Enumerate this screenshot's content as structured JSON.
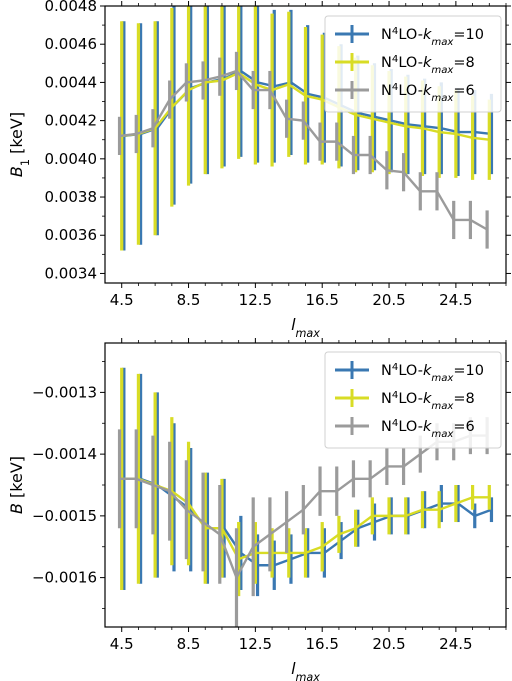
{
  "chart_data": [
    {
      "type": "line",
      "xlabel": "l_max",
      "ylabel": "B_1 [keV]",
      "ylim": [
        0.00335,
        0.0048
      ],
      "xlim": [
        3.5,
        27.5
      ],
      "x_ticks": [
        4.5,
        8.5,
        12.5,
        16.5,
        20.5,
        24.5
      ],
      "x_tick_labels": [
        "4.5",
        "8.5",
        "12.5",
        "16.5",
        "20.5",
        "24.5"
      ],
      "y_ticks": [
        0.0034,
        0.0036,
        0.0038,
        0.004,
        0.0042,
        0.0044,
        0.0046,
        0.0048
      ],
      "y_tick_labels": [
        "0.0034",
        "0.0036",
        "0.0038",
        "0.0040",
        "0.0042",
        "0.0044",
        "0.0046",
        "0.0048"
      ],
      "legend_position": "top-right",
      "x": [
        4.5,
        5.5,
        6.5,
        7.5,
        8.5,
        9.5,
        10.5,
        11.5,
        12.5,
        13.5,
        14.5,
        15.5,
        16.5,
        17.5,
        18.5,
        19.5,
        20.5,
        21.5,
        22.5,
        23.5,
        24.5,
        25.5,
        26.5
      ],
      "series": [
        {
          "name": "N⁴LO-k_max=10",
          "color": "#3a78b2",
          "values": [
            0.00412,
            0.00413,
            0.00416,
            0.00428,
            0.00437,
            0.0044,
            0.00442,
            0.00446,
            0.0044,
            0.00438,
            0.0044,
            0.00434,
            0.00432,
            0.00428,
            0.00424,
            0.00422,
            0.0042,
            0.00418,
            0.00417,
            0.00416,
            0.00414,
            0.00414,
            0.00413
          ],
          "errors": [
            0.0006,
            0.00058,
            0.00056,
            0.00052,
            0.0005,
            0.00048,
            0.00046,
            0.00045,
            0.00042,
            0.0004,
            0.00038,
            0.00036,
            0.00034,
            0.00032,
            0.0003,
            0.00028,
            0.00027,
            0.00026,
            0.00025,
            0.00024,
            0.00023,
            0.00022,
            0.00021
          ]
        },
        {
          "name": "N⁴LO-k_max=8",
          "color": "#d8dc25",
          "values": [
            0.00412,
            0.00413,
            0.00416,
            0.00427,
            0.00436,
            0.0044,
            0.00441,
            0.00445,
            0.00439,
            0.00436,
            0.00439,
            0.00433,
            0.00431,
            0.00427,
            0.00423,
            0.00421,
            0.00419,
            0.00417,
            0.00416,
            0.00414,
            0.00413,
            0.00411,
            0.0041
          ],
          "errors": [
            0.0006,
            0.00058,
            0.00056,
            0.00052,
            0.0005,
            0.00048,
            0.00046,
            0.00045,
            0.00042,
            0.0004,
            0.00038,
            0.00036,
            0.00034,
            0.00032,
            0.0003,
            0.00028,
            0.00027,
            0.00026,
            0.00025,
            0.00024,
            0.00023,
            0.00022,
            0.00021
          ]
        },
        {
          "name": "N⁴LO-k_max=6",
          "color": "#9b9b9b",
          "values": [
            0.00412,
            0.00413,
            0.00416,
            0.00431,
            0.0044,
            0.00441,
            0.00443,
            0.00446,
            0.00436,
            0.00436,
            0.00421,
            0.0042,
            0.00409,
            0.00409,
            0.00402,
            0.00402,
            0.00394,
            0.00393,
            0.00383,
            0.00383,
            0.00368,
            0.00368,
            0.00363
          ],
          "errors": [
            0.0001,
            0.0001,
            0.0001,
            0.0001,
            0.0001,
            0.0001,
            0.0001,
            0.0001,
            0.0001,
            0.0001,
            0.0001,
            0.0001,
            0.0001,
            0.0001,
            0.0001,
            0.0001,
            0.0001,
            0.0001,
            0.0001,
            0.0001,
            0.0001,
            0.0001,
            0.0001
          ]
        }
      ]
    },
    {
      "type": "line",
      "xlabel": "l_max",
      "ylabel": "B [keV]",
      "ylim": [
        -0.00168,
        -0.00122
      ],
      "xlim": [
        3.5,
        27.5
      ],
      "x_ticks": [
        4.5,
        8.5,
        12.5,
        16.5,
        20.5,
        24.5
      ],
      "x_tick_labels": [
        "4.5",
        "8.5",
        "12.5",
        "16.5",
        "20.5",
        "24.5"
      ],
      "y_ticks": [
        -0.0016,
        -0.0015,
        -0.0014,
        -0.0013
      ],
      "y_tick_labels": [
        "−0.0016",
        "−0.0015",
        "−0.0014",
        "−0.0013"
      ],
      "legend_position": "top-right",
      "x": [
        4.5,
        5.5,
        6.5,
        7.5,
        8.5,
        9.5,
        10.5,
        11.5,
        12.5,
        13.5,
        14.5,
        15.5,
        16.5,
        17.5,
        18.5,
        19.5,
        20.5,
        21.5,
        22.5,
        23.5,
        24.5,
        25.5,
        26.5
      ],
      "series": [
        {
          "name": "N⁴LO-k_max=10",
          "color": "#3a78b2",
          "values": [
            -0.00144,
            -0.00144,
            -0.00145,
            -0.00147,
            -0.00149,
            -0.00152,
            -0.00152,
            -0.00156,
            -0.00158,
            -0.00158,
            -0.00157,
            -0.00156,
            -0.00156,
            -0.00154,
            -0.00152,
            -0.00151,
            -0.0015,
            -0.0015,
            -0.00149,
            -0.00148,
            -0.00148,
            -0.0015,
            -0.00149
          ],
          "errors": [
            0.00018,
            0.00017,
            0.00015,
            0.00012,
            0.0001,
            9e-05,
            8e-05,
            6e-05,
            5e-05,
            4e-05,
            4e-05,
            4e-05,
            4e-05,
            3e-05,
            3e-05,
            3e-05,
            3e-05,
            3e-05,
            3e-05,
            3e-05,
            3e-05,
            2e-05,
            2e-05
          ]
        },
        {
          "name": "N⁴LO-k_max=8",
          "color": "#d8dc25",
          "values": [
            -0.00144,
            -0.00144,
            -0.00145,
            -0.00146,
            -0.00148,
            -0.00152,
            -0.00152,
            -0.00157,
            -0.00156,
            -0.00156,
            -0.00156,
            -0.00156,
            -0.00155,
            -0.00153,
            -0.00152,
            -0.0015,
            -0.0015,
            -0.0015,
            -0.00149,
            -0.00149,
            -0.00148,
            -0.00147,
            -0.00147
          ],
          "errors": [
            0.00018,
            0.00017,
            0.00015,
            0.00012,
            0.0001,
            9e-05,
            8e-05,
            6e-05,
            5e-05,
            4e-05,
            4e-05,
            4e-05,
            4e-05,
            3e-05,
            3e-05,
            3e-05,
            3e-05,
            3e-05,
            3e-05,
            3e-05,
            3e-05,
            2e-05,
            2e-05
          ]
        },
        {
          "name": "N⁴LO-k_max=6",
          "color": "#9b9b9b",
          "values": [
            -0.00144,
            -0.00144,
            -0.00145,
            -0.00146,
            -0.00149,
            -0.00151,
            -0.00153,
            -0.0016,
            -0.00155,
            -0.00153,
            -0.00151,
            -0.00149,
            -0.00146,
            -0.00146,
            -0.00144,
            -0.00144,
            -0.00142,
            -0.00142,
            -0.0014,
            -0.00138,
            -0.00138,
            -0.00137,
            -0.00137
          ],
          "errors": [
            8e-05,
            8e-05,
            8e-05,
            8e-05,
            8e-05,
            8e-05,
            8e-05,
            8e-05,
            8e-05,
            6e-05,
            5e-05,
            4e-05,
            4e-05,
            4e-05,
            3e-05,
            3e-05,
            3e-05,
            3e-05,
            3e-05,
            3e-05,
            3e-05,
            3e-05,
            3e-05
          ]
        }
      ]
    }
  ]
}
